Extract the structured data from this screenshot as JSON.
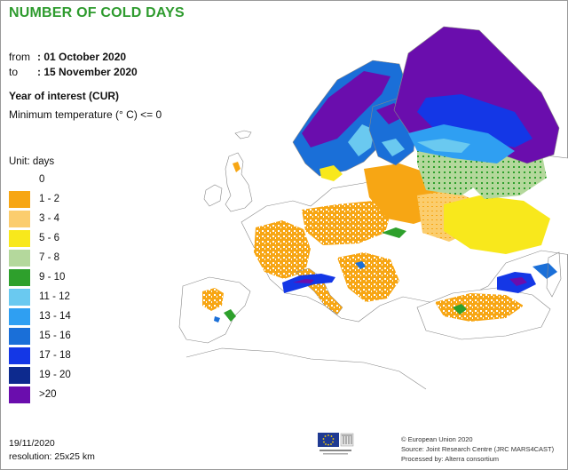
{
  "title": "NUMBER OF COLD DAYS",
  "period": {
    "from_label": "from",
    "from_value": ": 01 October 2020",
    "to_label": "to",
    "to_value": ": 15 November 2020"
  },
  "year_of_interest": "Year of interest (CUR)",
  "condition": "Minimum temperature (° C) <= 0",
  "unit": "Unit: days",
  "legend": [
    {
      "label": "0",
      "color": "#ffffff"
    },
    {
      "label": "1 - 2",
      "color": "#f7a614"
    },
    {
      "label": "3 - 4",
      "color": "#fbcd6e"
    },
    {
      "label": "5 - 6",
      "color": "#f8e81c"
    },
    {
      "label": "7 - 8",
      "color": "#b4d89c"
    },
    {
      "label": "9 - 10",
      "color": "#2ea02c"
    },
    {
      "label": "11 - 12",
      "color": "#6ac9f0"
    },
    {
      "label": "13 - 14",
      "color": "#2f9ff2"
    },
    {
      "label": "15 - 16",
      "color": "#1a6fd8"
    },
    {
      "label": "17 - 18",
      "color": "#1437e6"
    },
    {
      "label": "19 - 20",
      "color": "#0d2a8e"
    },
    {
      "label": ">20",
      "color": "#6a0dad"
    }
  ],
  "footer": {
    "date": "19/11/2020",
    "resolution": "resolution: 25x25 km",
    "credit_1": "© European Union 2020",
    "credit_2": "Source: Joint Research Centre (JRC MARS4CAST)",
    "credit_3": "Processed by: Alterra consortium"
  },
  "logo_icon": "eu-flag-icon"
}
